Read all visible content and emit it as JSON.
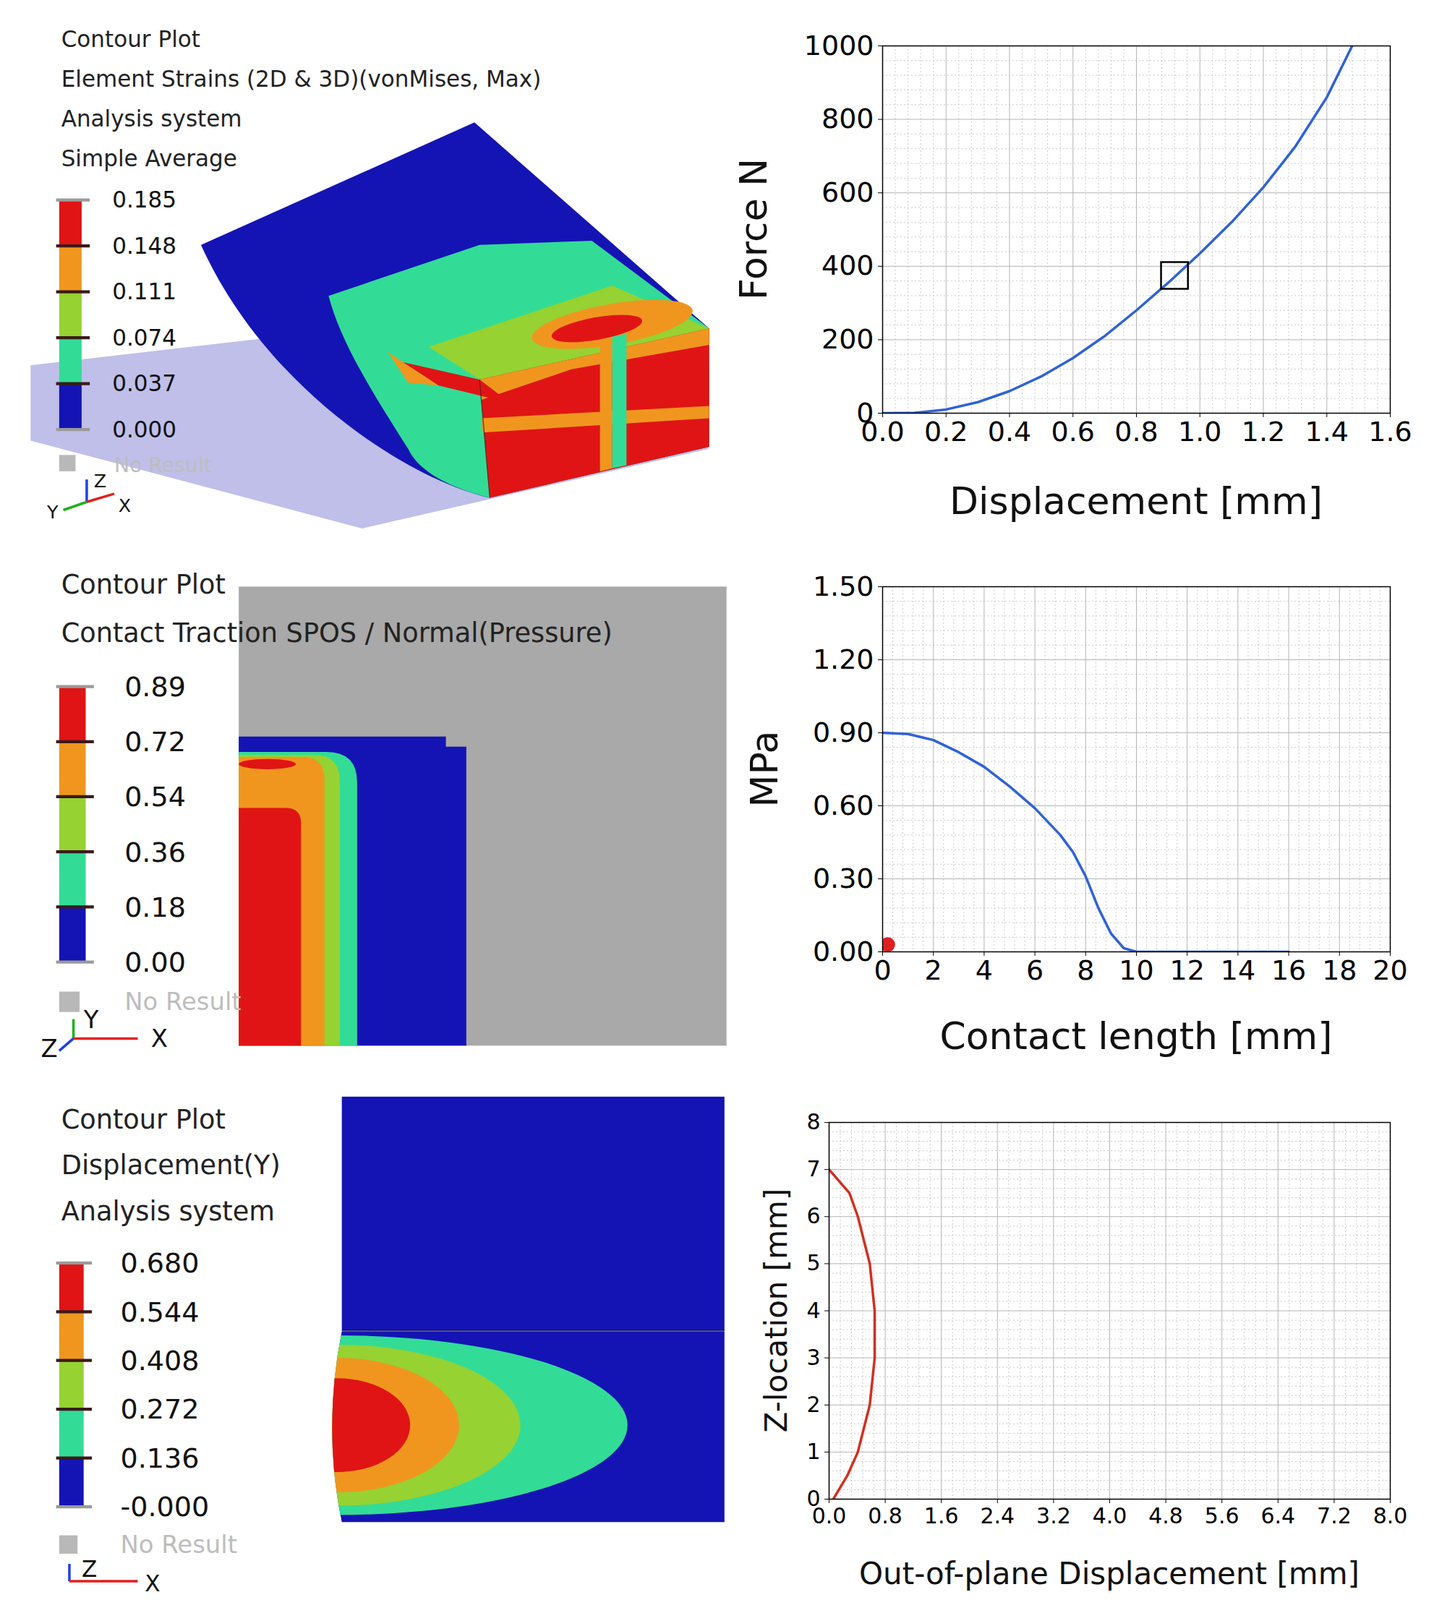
{
  "chart_data": [
    {
      "type": "line",
      "xlabel": "Displacement [mm]",
      "ylabel": "Force N",
      "xlim": [
        0,
        1.6
      ],
      "ylim": [
        0,
        1000
      ],
      "xticks": [
        {
          "value": 0,
          "label": "0.0"
        },
        0.2,
        0.4,
        0.6,
        0.8,
        {
          "value": 1,
          "label": "1.0"
        },
        1.2,
        1.4,
        1.6
      ],
      "yticks": [
        0,
        200,
        400,
        600,
        800,
        1000
      ],
      "grid": true,
      "series": [
        {
          "color": "#2f62d6",
          "x": [
            0,
            0.1,
            0.2,
            0.3,
            0.4,
            0.5,
            0.6,
            0.7,
            0.8,
            0.9,
            1.0,
            1.1,
            1.2,
            1.3,
            1.4,
            1.48
          ],
          "values": [
            0,
            1,
            10,
            30,
            60,
            100,
            150,
            210,
            280,
            355,
            435,
            520,
            615,
            725,
            860,
            1000
          ]
        },
        {
          "type": "scatter",
          "marker": "square",
          "color": "#000000",
          "x": [
            0.92
          ],
          "values": [
            375
          ]
        }
      ]
    },
    {
      "type": "line",
      "xlabel": "Contact length [mm]",
      "ylabel": "MPa",
      "xlim": [
        0,
        20
      ],
      "ylim": [
        0,
        1.5
      ],
      "xticks": [
        0,
        2,
        4,
        6,
        8,
        10,
        12,
        14,
        16,
        18,
        20
      ],
      "yticks": [
        {
          "value": 0,
          "label": "0.00"
        },
        {
          "value": 0.3,
          "label": "0.30"
        },
        {
          "value": 0.6,
          "label": "0.60"
        },
        {
          "value": 0.9,
          "label": "0.90"
        },
        {
          "value": 1.2,
          "label": "1.20"
        },
        {
          "value": 1.5,
          "label": "1.50"
        }
      ],
      "grid": true,
      "series": [
        {
          "color": "#2f62d6",
          "x": [
            0,
            1,
            2,
            3,
            4,
            5,
            6,
            7,
            7.5,
            8,
            8.5,
            9,
            9.5,
            10,
            12,
            14,
            16
          ],
          "values": [
            0.9,
            0.895,
            0.87,
            0.82,
            0.76,
            0.68,
            0.59,
            0.48,
            0.41,
            0.31,
            0.18,
            0.075,
            0.015,
            0,
            0,
            0,
            0
          ]
        },
        {
          "type": "scatter",
          "marker": "circle",
          "color": "#e02020",
          "x": [
            0.2
          ],
          "values": [
            0.03
          ]
        }
      ]
    },
    {
      "type": "line",
      "xlabel": "Out-of-plane Displacement [mm]",
      "ylabel": "Z-location [mm]",
      "xlim": [
        0,
        8
      ],
      "ylim": [
        0,
        8
      ],
      "xticks": [
        {
          "value": 0,
          "label": "0.0"
        },
        0.8,
        1.6,
        2.4,
        3.2,
        {
          "value": 4,
          "label": "4.0"
        },
        4.8,
        5.6,
        6.4,
        7.2,
        {
          "value": 8,
          "label": "8.0"
        }
      ],
      "yticks": [
        0,
        1,
        2,
        3,
        4,
        5,
        6,
        7,
        8
      ],
      "grid": true,
      "series": [
        {
          "color": "#d03020",
          "x": [
            0.06,
            0.26,
            0.41,
            0.58,
            0.65,
            0.65,
            0.58,
            0.41,
            0.29,
            0
          ],
          "values": [
            0,
            0.5,
            1,
            2,
            3,
            4,
            5,
            6,
            6.5,
            7
          ]
        }
      ]
    }
  ],
  "contour_plots": [
    {
      "title_lines": [
        "Contour Plot",
        "Element Strains (2D & 3D)(vonMises, Max)",
        "Analysis system",
        "Simple Average"
      ],
      "legend": {
        "levels": [
          0.185,
          0.148,
          0.111,
          0.074,
          0.037,
          {
            "value": 0,
            "label": "0.000"
          }
        ],
        "colors": [
          "#e01414",
          "#f0961e",
          "#96d232",
          "#32dc96",
          "#1414b4"
        ]
      },
      "no_result": "No Result",
      "triad": [
        "Z",
        "X",
        "Y"
      ]
    },
    {
      "title_lines": [
        "Contour Plot",
        "Contact Traction SPOS / Normal(Pressure)"
      ],
      "legend": {
        "levels": [
          0.89,
          0.72,
          0.54,
          0.36,
          0.18,
          {
            "value": 0,
            "label": "0.00"
          }
        ],
        "colors": [
          "#e01414",
          "#f0961e",
          "#96d232",
          "#32dc96",
          "#1414b4"
        ]
      },
      "no_result": "No Result",
      "triad": [
        "Y",
        "Z",
        "X"
      ]
    },
    {
      "title_lines": [
        "Contour Plot",
        "Displacement(Y)",
        "Analysis system"
      ],
      "legend": {
        "levels": [
          {
            "value": 0.68,
            "label": "0.680"
          },
          0.544,
          0.408,
          0.272,
          0.136,
          {
            "value": 0,
            "label": "-0.000"
          }
        ],
        "colors": [
          "#e01414",
          "#f0961e",
          "#96d232",
          "#32dc96",
          "#1414b4"
        ]
      },
      "no_result": "No Result",
      "triad": [
        "Z",
        "X"
      ]
    }
  ]
}
